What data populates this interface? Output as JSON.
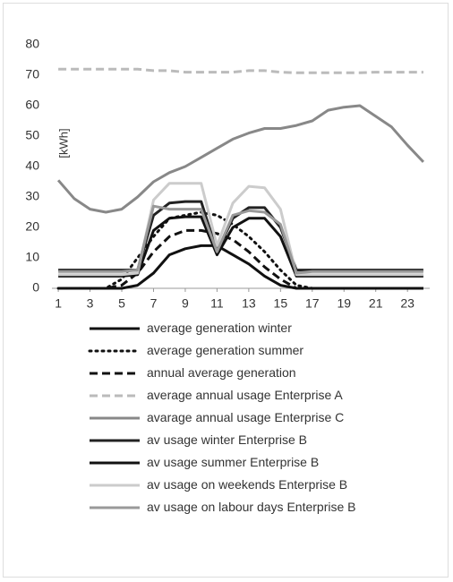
{
  "chart_data": {
    "type": "line",
    "y_label": "[kWh]",
    "x": [
      1,
      2,
      3,
      4,
      5,
      6,
      7,
      8,
      9,
      10,
      11,
      12,
      13,
      14,
      15,
      16,
      17,
      18,
      19,
      20,
      21,
      22,
      23,
      24
    ],
    "xlim": [
      0.6,
      24.4
    ],
    "xticks": [
      1,
      3,
      5,
      7,
      9,
      11,
      13,
      15,
      17,
      19,
      21,
      23
    ],
    "ylim": [
      0,
      80
    ],
    "yticks": [
      0,
      10,
      20,
      30,
      40,
      50,
      60,
      70,
      80
    ],
    "grid": false,
    "series": [
      {
        "name": "average generation winter",
        "color": "#111111",
        "dash": "solid",
        "values": [
          0,
          0,
          0,
          0,
          0,
          1,
          5,
          11,
          13,
          14,
          14,
          11,
          8,
          4,
          1,
          0,
          0,
          0,
          0,
          0,
          0,
          0,
          0,
          0
        ]
      },
      {
        "name": "average generation summer",
        "color": "#111111",
        "dash": "dotted",
        "values": [
          0,
          0,
          0,
          0,
          3,
          10,
          17,
          23,
          24,
          25,
          24,
          21,
          17,
          12,
          6,
          1,
          0,
          0,
          0,
          0,
          0,
          0,
          0,
          0
        ]
      },
      {
        "name": "annual average generation",
        "color": "#111111",
        "dash": "dashed",
        "values": [
          0,
          0,
          0,
          0,
          1,
          5,
          12,
          17,
          19,
          19,
          18,
          16,
          12,
          7,
          3,
          0,
          0,
          0,
          0,
          0,
          0,
          0,
          0,
          0
        ]
      },
      {
        "name": "average annual usage Enterprise A",
        "color": "#bbbbbb",
        "dash": "dashed",
        "values": [
          72,
          72,
          72,
          72,
          72,
          72,
          71.5,
          71.5,
          71,
          71,
          71,
          71,
          71.5,
          71.5,
          71,
          70.8,
          70.8,
          70.8,
          70.8,
          70.8,
          71,
          71,
          71,
          71
        ]
      },
      {
        "name": "avarage annual usage Enterprise C",
        "color": "#888888",
        "dash": "solid",
        "values": [
          35.5,
          29.5,
          26,
          25,
          26,
          30,
          35,
          38,
          40,
          43,
          46,
          49,
          51,
          52.5,
          52.5,
          53.5,
          55,
          58.5,
          59.5,
          60,
          56.5,
          53,
          47,
          41.5
        ]
      },
      {
        "name": "av usage winter Enterprise B",
        "color": "#222222",
        "dash": "solid",
        "values": [
          6,
          6,
          6,
          6,
          6,
          6,
          24,
          28,
          28.5,
          28.5,
          12,
          23,
          26.5,
          26.5,
          20,
          6,
          6,
          6,
          6,
          6,
          6,
          6,
          6,
          6
        ]
      },
      {
        "name": "av usage summer Enterprise B",
        "color": "#111111",
        "dash": "solid",
        "values": [
          4,
          4,
          4,
          4,
          4,
          4.5,
          19,
          23,
          23.5,
          23.5,
          11,
          20,
          23,
          23,
          17,
          4,
          4,
          4,
          4,
          4,
          4,
          4,
          4,
          4
        ]
      },
      {
        "name": "av usage on weekends Enterprise B",
        "color": "#cccccc",
        "dash": "solid",
        "values": [
          4.5,
          4.5,
          4.5,
          4.5,
          4.5,
          5,
          29,
          34.5,
          34.5,
          34.5,
          14,
          28,
          33.5,
          33,
          26,
          4.5,
          4.5,
          4.5,
          4.5,
          4.5,
          4.5,
          4.5,
          4.5,
          4.5
        ]
      },
      {
        "name": "av usage on labour days Enterprise B",
        "color": "#999999",
        "dash": "solid",
        "values": [
          5.5,
          5.5,
          5.5,
          5.5,
          5.5,
          6,
          27,
          26,
          26,
          26,
          12,
          24,
          25.5,
          25,
          21,
          5,
          5.5,
          5.5,
          5.5,
          5.5,
          5.5,
          5.5,
          5.5,
          5.5
        ]
      }
    ]
  }
}
